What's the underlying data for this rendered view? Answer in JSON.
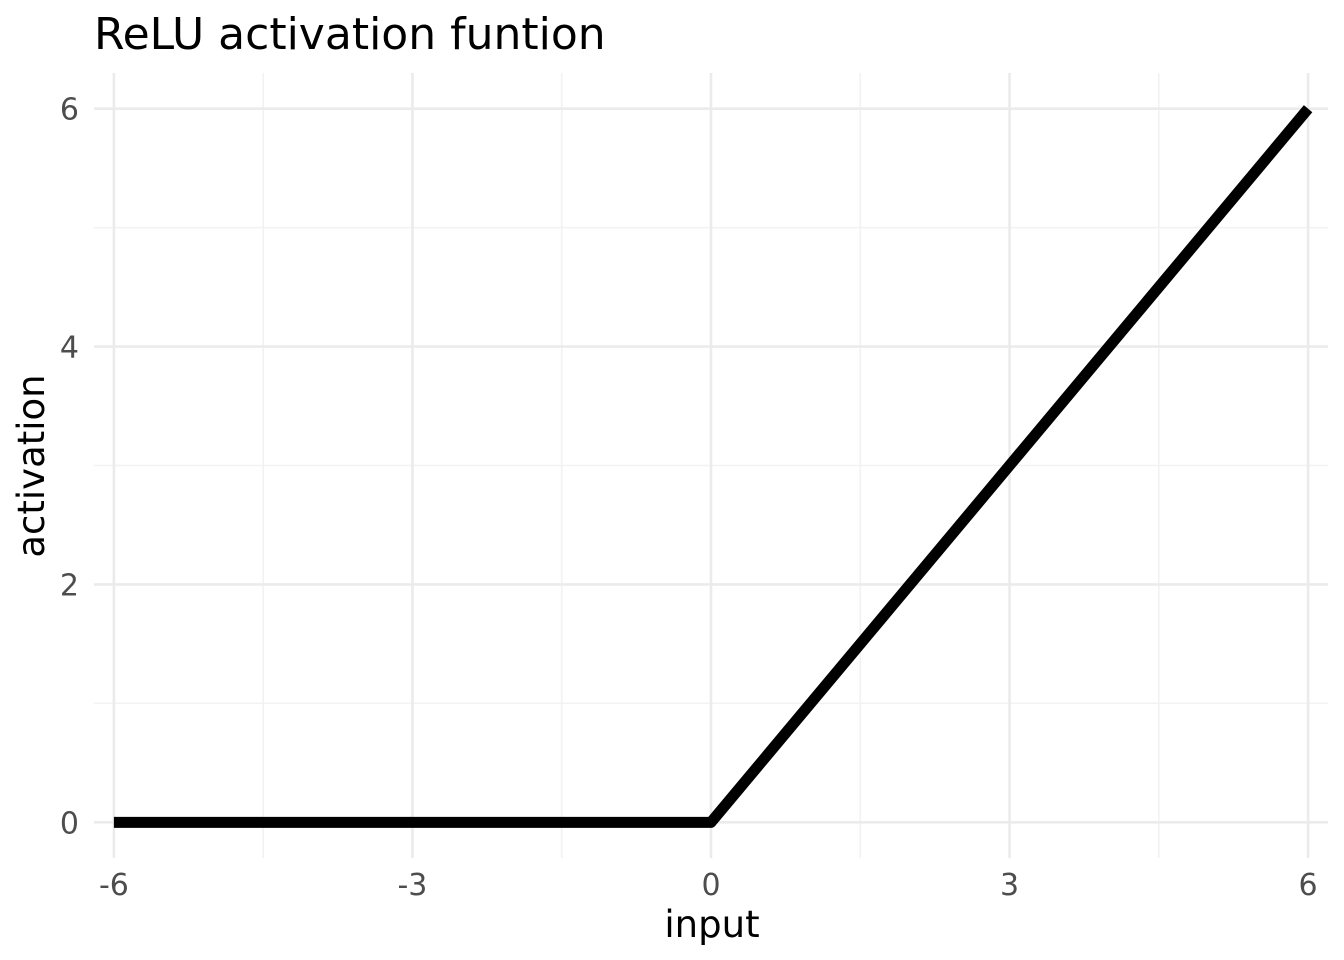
{
  "chart_data": {
    "type": "line",
    "title": "ReLU activation funtion",
    "xlabel": "input",
    "ylabel": "activation",
    "xlim": [
      -6.2,
      6.2
    ],
    "ylim": [
      -0.3,
      6.3
    ],
    "x_ticks": [
      -6,
      -3,
      0,
      3,
      6
    ],
    "x_tick_labels": [
      "-6",
      "-3",
      "0",
      "3",
      "6"
    ],
    "y_ticks": [
      0,
      2,
      4,
      6
    ],
    "y_tick_labels": [
      "0",
      "2",
      "4",
      "6"
    ],
    "x_minor_ticks": [
      -4.5,
      -1.5,
      1.5,
      4.5
    ],
    "y_minor_ticks": [
      1,
      3,
      5
    ],
    "grid": true,
    "legend": "none",
    "series": [
      {
        "x": [
          -6,
          0,
          6
        ],
        "y": [
          0,
          0,
          6
        ],
        "color": "#000000"
      }
    ]
  },
  "colors": {
    "background": "#ffffff",
    "grid_major": "#ebebeb",
    "grid_minor": "#f2f2f2",
    "line": "#000000",
    "tick_text": "#4d4d4d"
  }
}
